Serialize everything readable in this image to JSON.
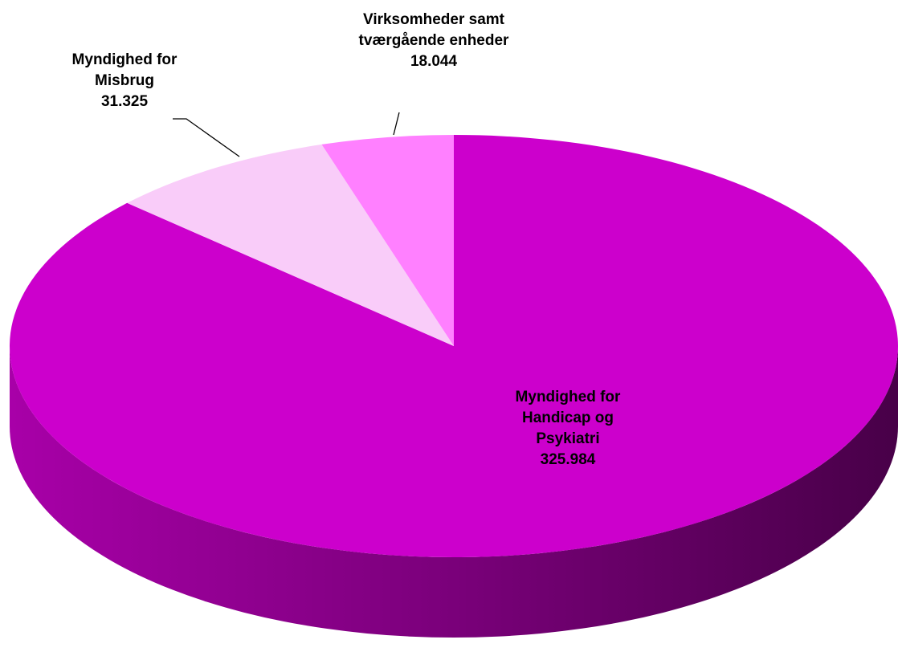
{
  "chart_data": {
    "type": "pie",
    "categories": [
      "Myndighed for Handicap og Psykiatri",
      "Myndighed for Misbrug",
      "Virksomheder samt tværgående enheder"
    ],
    "values": [
      325984,
      31325,
      18044
    ],
    "value_labels": [
      "325.984",
      "31.325",
      "18.044"
    ],
    "colors": [
      "#cc00cc",
      "#f9ccf9",
      "#ff80ff"
    ]
  }
}
